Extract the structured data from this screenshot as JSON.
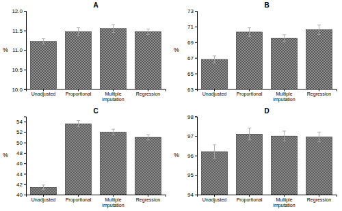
{
  "chart_data": [
    {
      "type": "bar",
      "title": "A",
      "ylabel": "%",
      "color": "#909090",
      "categories": [
        "Unadjusted",
        "Proportional",
        "Multiple imputation",
        "Regression"
      ],
      "values": [
        11.22,
        11.47,
        11.55,
        11.47
      ],
      "errors": [
        0.07,
        0.1,
        0.1,
        0.07
      ],
      "ylim": [
        10.0,
        12.0
      ],
      "yticks": [
        {
          "value": 10.0,
          "label": "10.0"
        },
        10.5,
        {
          "value": 11.0,
          "label": "11.0"
        },
        11.5,
        {
          "value": 12.0,
          "label": "12.0"
        }
      ]
    },
    {
      "type": "bar",
      "title": "B",
      "ylabel": "%",
      "color": "#909090",
      "categories": [
        "Unadjusted",
        "Proportional",
        "Multiple imputation",
        "Regression"
      ],
      "values": [
        66.8,
        70.3,
        69.5,
        70.6
      ],
      "errors": [
        0.45,
        0.55,
        0.45,
        0.6
      ],
      "ylim": [
        63.0,
        73.0
      ],
      "yticks": [
        63,
        65,
        67,
        69,
        71,
        73
      ]
    },
    {
      "type": "bar",
      "title": "C",
      "ylabel": "%",
      "color": "#909090",
      "categories": [
        "Unadjusted",
        "Proportional",
        "Multiple imputation",
        "Regression"
      ],
      "values": [
        41.4,
        53.6,
        52.0,
        51.0
      ],
      "errors": [
        0.45,
        0.6,
        0.55,
        0.5
      ],
      "ylim": [
        40.0,
        55.0
      ],
      "yticks": [
        40,
        42,
        44,
        46,
        48,
        50,
        52,
        54
      ]
    },
    {
      "type": "bar",
      "title": "D",
      "ylabel": "%",
      "color": "#909090",
      "categories": [
        "Unadjusted",
        "Proportional",
        "Multiple imputation",
        "Regression"
      ],
      "values": [
        96.2,
        97.1,
        97.0,
        96.95
      ],
      "errors": [
        0.35,
        0.3,
        0.25,
        0.25
      ],
      "ylim": [
        94.0,
        98.0
      ],
      "yticks": [
        94,
        95,
        96,
        97,
        98
      ]
    }
  ]
}
